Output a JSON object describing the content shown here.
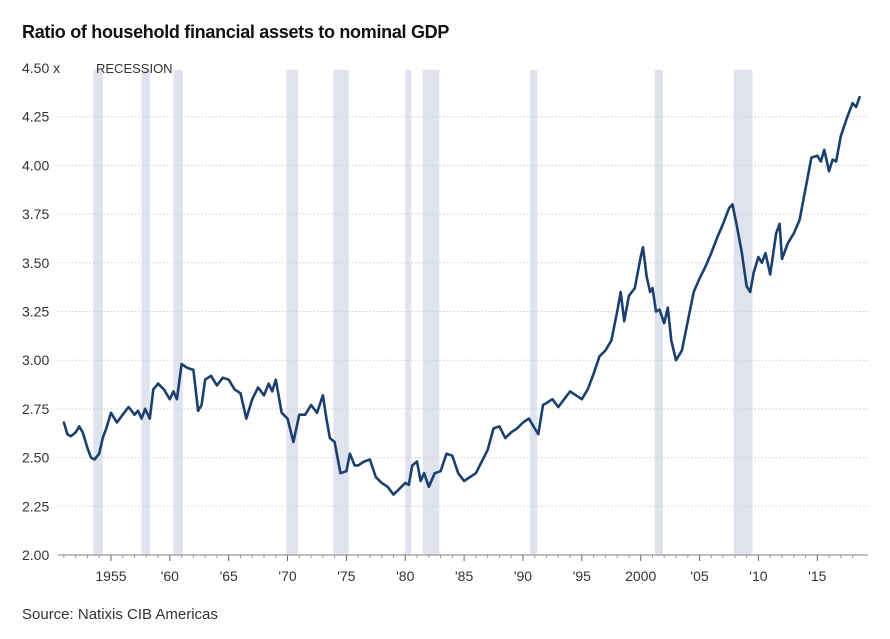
{
  "chart_data": {
    "type": "line",
    "title": "Ratio of household financial assets to nominal GDP",
    "source": "Source: Natixis CIB Americas",
    "recession_label": "RECESSION",
    "ylim": [
      2.0,
      4.5
    ],
    "xlim": [
      1950.5,
      2018.8
    ],
    "y_ticks": [
      2.0,
      2.25,
      2.5,
      2.75,
      3.0,
      3.25,
      3.5,
      3.75,
      4.0,
      4.25,
      4.5
    ],
    "y_tick_labels": [
      "2.00",
      "2.25",
      "2.50",
      "2.75",
      "3.00",
      "3.25",
      "3.50",
      "3.75",
      "4.00",
      "4.25",
      "4.50 x"
    ],
    "x_ticks": [
      1955,
      1960,
      1965,
      1970,
      1975,
      1980,
      1985,
      1990,
      1995,
      2000,
      2005,
      2010,
      2015
    ],
    "x_tick_labels": [
      "1955",
      "'60",
      "'65",
      "'70",
      "'75",
      "'80",
      "'85",
      "'90",
      "'95",
      "2000",
      "'05",
      "'10",
      "'15"
    ],
    "grid": true,
    "line_color": "#1b3f6e",
    "recession_color": "#dfe3ee",
    "recessions": [
      [
        1953.5,
        1954.3
      ],
      [
        1957.6,
        1958.3
      ],
      [
        1960.3,
        1961.1
      ],
      [
        1969.9,
        1970.9
      ],
      [
        1973.9,
        1975.2
      ],
      [
        1980.0,
        1980.5
      ],
      [
        1981.5,
        1982.9
      ],
      [
        1990.6,
        1991.2
      ],
      [
        2001.2,
        2001.9
      ],
      [
        2007.9,
        2009.5
      ]
    ],
    "series": [
      {
        "x": [
          1951.0,
          1951.3,
          1951.6,
          1952.0,
          1952.3,
          1952.6,
          1953.0,
          1953.3,
          1953.6,
          1954.0,
          1954.3,
          1954.6,
          1955.0,
          1955.5,
          1956.0,
          1956.5,
          1957.0,
          1957.3,
          1957.6,
          1957.9,
          1958.3,
          1958.6,
          1959.0,
          1959.5,
          1960.0,
          1960.3,
          1960.6,
          1961.0,
          1961.5,
          1962.0,
          1962.4,
          1962.7,
          1963.0,
          1963.5,
          1964.0,
          1964.5,
          1965.0,
          1965.5,
          1966.0,
          1966.5,
          1967.0,
          1967.5,
          1968.0,
          1968.4,
          1968.7,
          1969.0,
          1969.5,
          1970.0,
          1970.5,
          1971.0,
          1971.5,
          1972.0,
          1972.5,
          1973.0,
          1973.3,
          1973.6,
          1974.0,
          1974.5,
          1975.0,
          1975.3,
          1975.7,
          1976.0,
          1976.5,
          1977.0,
          1977.5,
          1978.0,
          1978.5,
          1979.0,
          1979.5,
          1980.0,
          1980.3,
          1980.6,
          1981.0,
          1981.3,
          1981.6,
          1982.0,
          1982.5,
          1983.0,
          1983.5,
          1984.0,
          1984.5,
          1985.0,
          1985.5,
          1986.0,
          1986.5,
          1987.0,
          1987.5,
          1988.0,
          1988.5,
          1989.0,
          1989.5,
          1990.0,
          1990.5,
          1991.0,
          1991.3,
          1991.7,
          1992.0,
          1992.5,
          1993.0,
          1993.5,
          1994.0,
          1994.5,
          1995.0,
          1995.5,
          1996.0,
          1996.5,
          1997.0,
          1997.5,
          1998.0,
          1998.3,
          1998.6,
          1999.0,
          1999.5,
          2000.0,
          2000.2,
          2000.5,
          2000.8,
          2001.0,
          2001.3,
          2001.6,
          2002.0,
          2002.3,
          2002.6,
          2003.0,
          2003.5,
          2004.0,
          2004.5,
          2005.0,
          2005.5,
          2006.0,
          2006.5,
          2007.0,
          2007.5,
          2007.8,
          2008.2,
          2008.6,
          2009.0,
          2009.3,
          2009.6,
          2010.0,
          2010.3,
          2010.6,
          2011.0,
          2011.5,
          2011.8,
          2012.0,
          2012.5,
          2013.0,
          2013.5,
          2014.0,
          2014.5,
          2015.0,
          2015.3,
          2015.6,
          2016.0,
          2016.3,
          2016.6,
          2017.0,
          2017.5,
          2018.0,
          2018.3,
          2018.6
        ],
        "values": [
          2.68,
          2.62,
          2.61,
          2.63,
          2.66,
          2.63,
          2.55,
          2.5,
          2.49,
          2.52,
          2.6,
          2.65,
          2.73,
          2.68,
          2.72,
          2.76,
          2.72,
          2.74,
          2.7,
          2.75,
          2.7,
          2.85,
          2.88,
          2.85,
          2.8,
          2.84,
          2.8,
          2.98,
          2.96,
          2.95,
          2.74,
          2.77,
          2.9,
          2.92,
          2.87,
          2.91,
          2.9,
          2.85,
          2.83,
          2.7,
          2.8,
          2.86,
          2.82,
          2.88,
          2.84,
          2.9,
          2.73,
          2.7,
          2.58,
          2.72,
          2.72,
          2.77,
          2.73,
          2.82,
          2.7,
          2.6,
          2.58,
          2.42,
          2.43,
          2.52,
          2.46,
          2.46,
          2.48,
          2.49,
          2.4,
          2.37,
          2.35,
          2.31,
          2.34,
          2.37,
          2.36,
          2.46,
          2.48,
          2.38,
          2.42,
          2.35,
          2.42,
          2.43,
          2.52,
          2.51,
          2.42,
          2.38,
          2.4,
          2.42,
          2.48,
          2.54,
          2.65,
          2.66,
          2.6,
          2.63,
          2.65,
          2.68,
          2.7,
          2.65,
          2.62,
          2.77,
          2.78,
          2.8,
          2.76,
          2.8,
          2.84,
          2.82,
          2.8,
          2.85,
          2.93,
          3.02,
          3.05,
          3.1,
          3.25,
          3.35,
          3.2,
          3.33,
          3.37,
          3.53,
          3.58,
          3.43,
          3.35,
          3.37,
          3.25,
          3.26,
          3.19,
          3.27,
          3.1,
          3.0,
          3.05,
          3.2,
          3.35,
          3.42,
          3.48,
          3.55,
          3.63,
          3.7,
          3.78,
          3.8,
          3.68,
          3.55,
          3.38,
          3.35,
          3.45,
          3.53,
          3.5,
          3.55,
          3.44,
          3.65,
          3.7,
          3.52,
          3.6,
          3.65,
          3.72,
          3.88,
          4.04,
          4.05,
          4.02,
          4.08,
          3.97,
          4.03,
          4.02,
          4.15,
          4.24,
          4.32,
          4.3,
          4.35
        ]
      }
    ]
  }
}
